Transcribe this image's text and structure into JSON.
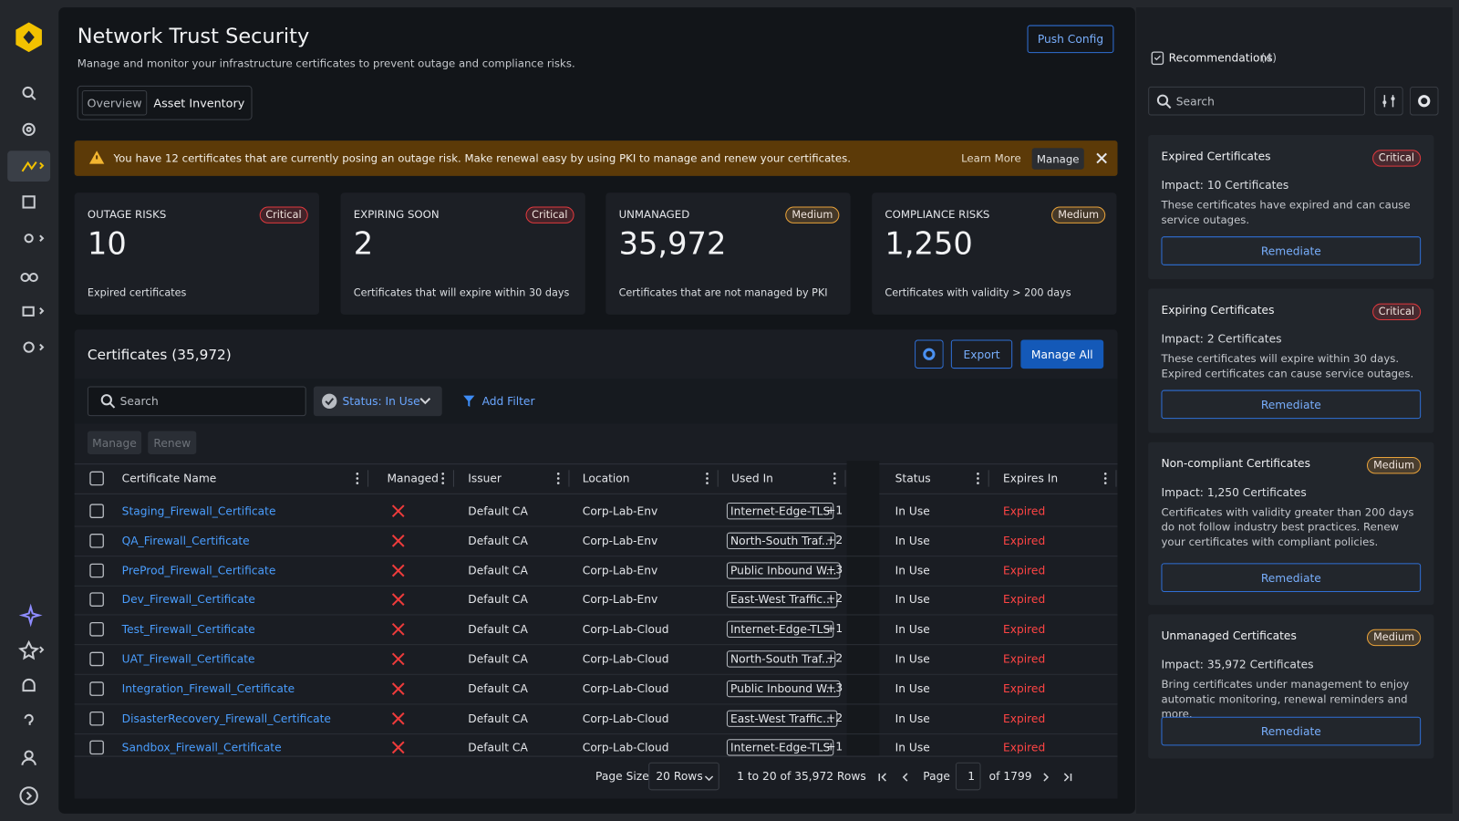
{
  "header": {
    "title": "Network Trust Security",
    "subtitle": "Manage and monitor your infrastructure certificates to prevent outage and compliance risks.",
    "push_button": "Push Config"
  },
  "tabs": [
    "Overview",
    "Asset Inventory"
  ],
  "banner": {
    "text": "You have 12 certificates that are currently posing an outage risk. Make renewal easy by using PKI to manage and renew your certificates.",
    "learn_more": "Learn More",
    "manage": "Manage"
  },
  "cards": [
    {
      "label": "OUTAGE RISKS",
      "badge": "Critical",
      "badge_color": "#e0393e",
      "value": "10",
      "desc": "Expired certificates"
    },
    {
      "label": "EXPIRING SOON",
      "badge": "Critical",
      "badge_color": "#e0393e",
      "value": "2",
      "desc": "Certificates that will expire within 30 days"
    },
    {
      "label": "UNMANAGED",
      "badge": "Medium",
      "badge_color": "#e8a23a",
      "value": "35,972",
      "desc": "Certificates that are not managed by PKI"
    },
    {
      "label": "COMPLIANCE RISKS",
      "badge": "Medium",
      "badge_color": "#e8a23a",
      "value": "1,250",
      "desc": "Certificates with validity > 200 days"
    }
  ],
  "table": {
    "title": "Certificates (35,972)",
    "export": "Export",
    "manage_all": "Manage All",
    "search": "Search",
    "status_filter": "Status: In Use",
    "add_filter": "Add Filter",
    "actions": [
      "Manage",
      "Renew"
    ],
    "columns": [
      "Certificate Name",
      "Managed",
      "Issuer",
      "Location",
      "Used In",
      "Status",
      "Expires In"
    ],
    "rows": [
      [
        "Staging_Firewall_Certificate",
        "Default CA",
        "Corp-Lab-Env",
        "Internet-Edge-TLS",
        "+1",
        "In Use",
        "Expired"
      ],
      [
        "QA_Firewall_Certificate",
        "Default CA",
        "Corp-Lab-Env",
        "North-South Traf...",
        "+2",
        "In Use",
        "Expired"
      ],
      [
        "PreProd_Firewall_Certificate",
        "Default CA",
        "Corp-Lab-Env",
        "Public Inbound W...",
        "+3",
        "In Use",
        "Expired"
      ],
      [
        "Dev_Firewall_Certificate",
        "Default CA",
        "Corp-Lab-Env",
        "East-West Traffic...",
        "+2",
        "In Use",
        "Expired"
      ],
      [
        "Test_Firewall_Certificate",
        "Default CA",
        "Corp-Lab-Cloud",
        "Internet-Edge-TLS",
        "+1",
        "In Use",
        "Expired"
      ],
      [
        "UAT_Firewall_Certificate",
        "Default CA",
        "Corp-Lab-Cloud",
        "North-South Traf...",
        "+2",
        "In Use",
        "Expired"
      ],
      [
        "Integration_Firewall_Certificate",
        "Default CA",
        "Corp-Lab-Cloud",
        "Public Inbound W...",
        "+3",
        "In Use",
        "Expired"
      ],
      [
        "DisasterRecovery_Firewall_Certificate",
        "Default CA",
        "Corp-Lab-Cloud",
        "East-West Traffic...",
        "+2",
        "In Use",
        "Expired"
      ],
      [
        "Sandbox_Firewall_Certificate",
        "Default CA",
        "Corp-Lab-Cloud",
        "Internet-Edge-TLS",
        "+1",
        "In Use",
        "Expired"
      ]
    ],
    "pagination": {
      "page_size_label": "Page Size",
      "page_size": "20 Rows",
      "range": "1 to 20 of 35,972 Rows",
      "page_label": "Page",
      "page": "1",
      "of": "of 1799"
    }
  },
  "recommendations": {
    "title": "Recommendations",
    "count": "(4)",
    "search": "Search",
    "items": [
      {
        "title": "Expired Certificates",
        "badge": "Critical",
        "badge_color": "#e0393e",
        "impact": "Impact: 10 Certificates",
        "desc": "These certificates have expired and can cause service outages.",
        "button": "Remediate"
      },
      {
        "title": "Expiring Certificates",
        "badge": "Critical",
        "badge_color": "#e0393e",
        "impact": "Impact: 2 Certificates",
        "desc": "These certificates will expire within 30 days. Expired certificates can cause service outages.",
        "button": "Remediate"
      },
      {
        "title": "Non-compliant Certificates",
        "badge": "Medium",
        "badge_color": "#e8a23a",
        "impact": "Impact: 1,250 Certificates",
        "desc": "Certificates with validity greater than 200 days do not follow industry best practices. Renew your certificates with compliant policies.",
        "button": "Remediate"
      },
      {
        "title": "Unmanaged Certificates",
        "badge": "Medium",
        "badge_color": "#e8a23a",
        "impact": "Impact: 35,972 Certificates",
        "desc": "Bring certificates under management to enjoy automatic monitoring, renewal reminders and more.",
        "button": "Remediate"
      }
    ]
  }
}
